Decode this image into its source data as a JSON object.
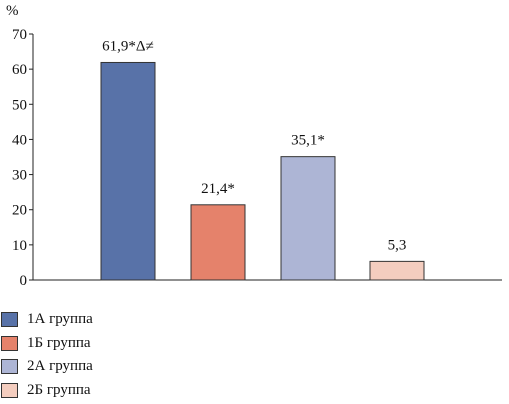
{
  "chart_data": {
    "type": "bar",
    "unit": "%",
    "categories": [
      "1А группа",
      "1Б группа",
      "2А группа",
      "2Б группа"
    ],
    "values": [
      61.9,
      21.4,
      35.1,
      5.3
    ],
    "data_labels": [
      "61,9*Δ≠",
      "21,4*",
      "35,1*",
      "5,3"
    ],
    "colors": [
      "#5872a8",
      "#e5826b",
      "#adb5d5",
      "#f4cdbf"
    ],
    "ylim": [
      0,
      70
    ],
    "yticks": [
      0,
      10,
      20,
      30,
      40,
      50,
      60,
      70
    ],
    "grid": false,
    "legend_position": "bottom-left"
  },
  "legend": {
    "items": [
      {
        "label": "1А группа",
        "color": "#5872a8"
      },
      {
        "label": "1Б группа",
        "color": "#e5826b"
      },
      {
        "label": "2А группа",
        "color": "#adb5d5"
      },
      {
        "label": "2Б группа",
        "color": "#f4cdbf"
      }
    ]
  }
}
